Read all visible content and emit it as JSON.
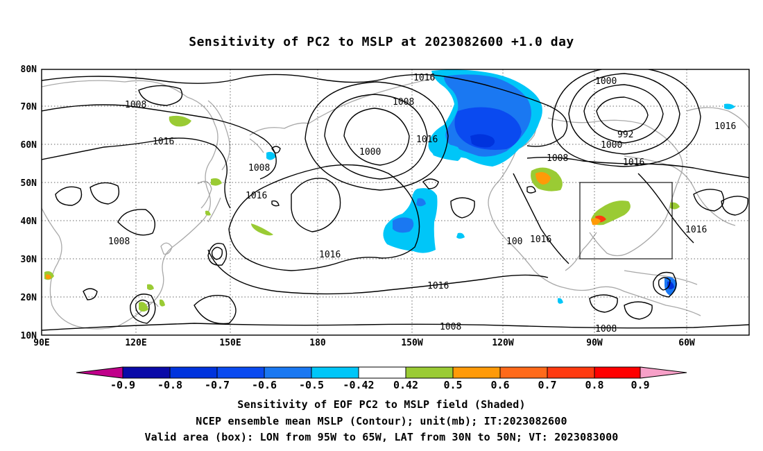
{
  "title": "Sensitivity of PC2 to MSLP at 2023082600 +1.0 day",
  "lat_labels": [
    "80N",
    "70N",
    "60N",
    "50N",
    "40N",
    "30N",
    "20N",
    "10N"
  ],
  "lon_labels": [
    "90E",
    "120E",
    "150E",
    "180",
    "150W",
    "120W",
    "90W",
    "60W"
  ],
  "contour_labels": [
    "1016",
    "1008",
    "1000",
    "1016",
    "1008",
    "1008",
    "1016",
    "1016",
    "1008",
    "1016",
    "1016",
    "1016",
    "1008",
    "1000",
    "992",
    "1000",
    "1016",
    "1016",
    "1016",
    "1008",
    "1008",
    "100"
  ],
  "colorbar": {
    "labels": [
      "-0.9",
      "-0.8",
      "-0.7",
      "-0.6",
      "-0.5",
      "-0.42",
      "0.42",
      "0.5",
      "0.6",
      "0.7",
      "0.8",
      "0.9"
    ],
    "colors": [
      "#c0008a",
      "#0a0aa8",
      "#0033dd",
      "#0a4af0",
      "#1a78f2",
      "#00c6f8",
      "#ffffff",
      "#9acb34",
      "#ff9a08",
      "#ff6a1a",
      "#ff3a10",
      "#ff0000",
      "#f7a0c8"
    ]
  },
  "valid_box": {
    "lon_min": -95,
    "lon_max": -65,
    "lat_min": 30,
    "lat_max": 50
  },
  "captions": [
    "Sensitivity of EOF PC2 to MSLP field (Shaded)",
    "NCEP ensemble mean MSLP (Contour); unit(mb); IT:2023082600",
    "Valid area (box): LON from 95W to 65W, LAT from 30N to 50N; VT: 2023083000"
  ]
}
